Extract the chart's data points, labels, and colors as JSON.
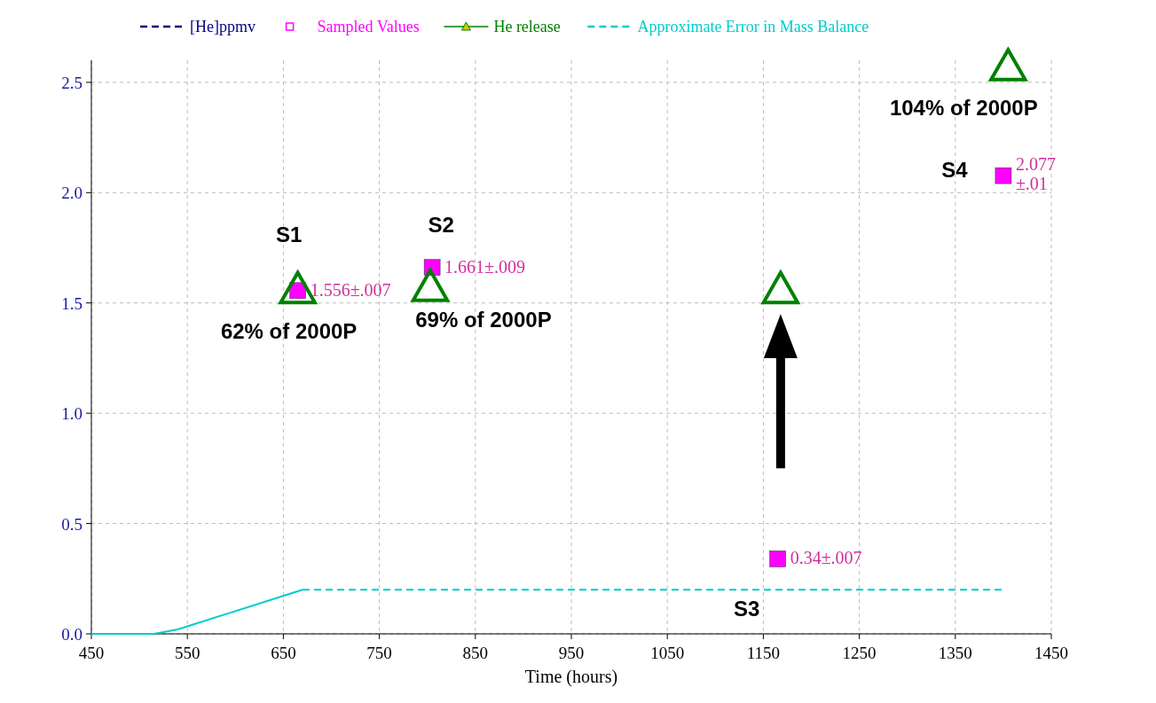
{
  "chart_data": {
    "type": "line",
    "xlabel": "Time (hours)",
    "xlim": [
      450,
      1450
    ],
    "xticks": [
      450,
      550,
      650,
      750,
      850,
      950,
      1050,
      1150,
      1250,
      1350,
      1450
    ],
    "ylim": [
      0,
      2.6
    ],
    "yticks": [
      {
        "value": 0,
        "label": "0.0"
      },
      {
        "value": 0.5,
        "label": "0.5"
      },
      {
        "value": 1,
        "label": "1.0"
      },
      {
        "value": 1.5,
        "label": "1.5"
      },
      {
        "value": 2,
        "label": "2.0"
      },
      {
        "value": 2.5,
        "label": "2.5"
      }
    ],
    "grid": true,
    "legend": "top",
    "series": [
      {
        "name": "[He]ppmv",
        "color": "#000080",
        "line_style": "dashed"
      },
      {
        "name": "Sampled Values",
        "type": "scatter",
        "marker": "square",
        "color": "#ff00ff",
        "x": [
          665,
          805,
          1165,
          1400
        ],
        "values": [
          1.556,
          1.661,
          0.34,
          2.077
        ],
        "value_labels": [
          "1.556±.007",
          "1.661±.009",
          "0.34±.007",
          "2.077 ±.01"
        ]
      },
      {
        "name": "He release",
        "type": "scatter",
        "marker": "triangle",
        "color": "#008000",
        "x": [
          665,
          803,
          1168,
          1405
        ],
        "values": [
          1.56,
          1.57,
          1.56,
          2.57
        ]
      },
      {
        "color": "#00cccc",
        "line_style": "solid",
        "x": [
          450,
          515,
          540,
          670
        ],
        "values": [
          0,
          0,
          0.02,
          0.2
        ]
      },
      {
        "name": "Approximate Error in Mass Balance",
        "color": "#00cccc",
        "line_style": "dashed",
        "x": [
          670,
          1400
        ],
        "values": [
          0.2,
          0.2
        ]
      }
    ],
    "annotations": [
      "S1",
      "S2",
      "S3",
      "S4",
      "62% of 2000P",
      "69% of 2000P",
      "104% of 2000P"
    ]
  }
}
